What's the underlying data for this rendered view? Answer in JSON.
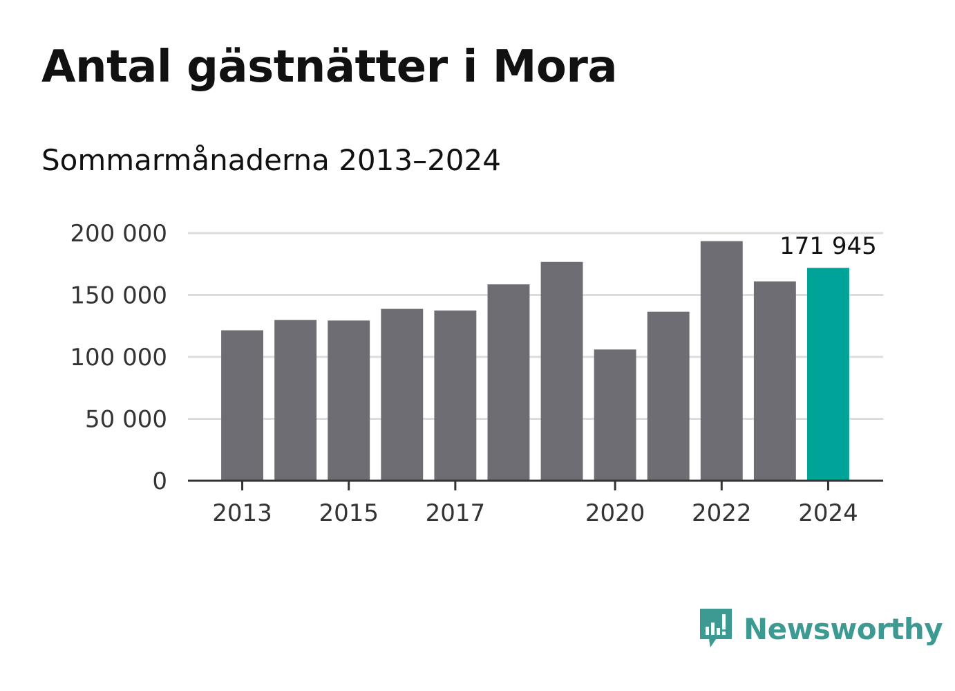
{
  "header": {
    "title": "Antal gästnätter i Mora",
    "subtitle": "Sommarmånaderna 2013–2024"
  },
  "brand": {
    "name": "Newsworthy",
    "icon": "newsworthy-logo-icon",
    "color": "#3d9a92"
  },
  "colors": {
    "bar": "#6e6d73",
    "highlight": "#00a398",
    "grid": "#dddddd",
    "axis": "#333333"
  },
  "chart_data": {
    "type": "bar",
    "categories": [
      "2013",
      "2014",
      "2015",
      "2016",
      "2017",
      "2018",
      "2019",
      "2020",
      "2021",
      "2022",
      "2023",
      "2024"
    ],
    "tick_labels": [
      "2013",
      "2015",
      "2017",
      "2020",
      "2022",
      "2024"
    ],
    "values": [
      121500,
      129800,
      129400,
      138800,
      137500,
      158600,
      176700,
      106000,
      136500,
      193500,
      161000,
      171945
    ],
    "highlight_index": 11,
    "data_labels": [
      {
        "index": 11,
        "text": "171 945"
      }
    ],
    "yticks": [
      {
        "value": 0,
        "label": "0"
      },
      {
        "value": 50000,
        "label": "50 000"
      },
      {
        "value": 100000,
        "label": "100 000"
      },
      {
        "value": 150000,
        "label": "150 000"
      },
      {
        "value": 200000,
        "label": "200 000"
      }
    ],
    "ylim": [
      0,
      200000
    ],
    "grid": true,
    "legend": "none",
    "title": "Antal gästnätter i Mora",
    "subtitle": "Sommarmånaderna 2013–2024",
    "xlabel": "",
    "ylabel": ""
  }
}
